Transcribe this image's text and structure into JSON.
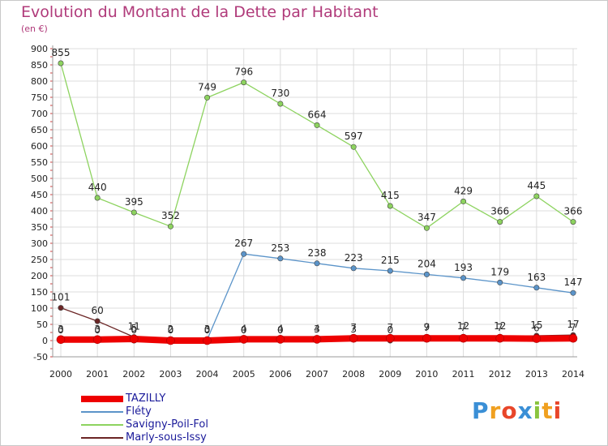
{
  "title": "Evolution du Montant de la Dette par Habitant",
  "subtitle": "(en €)",
  "logo": "Proxiti",
  "chart_data": {
    "type": "line",
    "title": "Evolution du Montant de la Dette par Habitant",
    "ylabel": "(en €)",
    "xlabel": "",
    "x": [
      "2000",
      "2001",
      "2002",
      "2003",
      "2004",
      "2005",
      "2006",
      "2007",
      "2008",
      "2009",
      "2010",
      "2011",
      "2012",
      "2013",
      "2014"
    ],
    "ylim": [
      -50,
      900
    ],
    "yticks": [
      -50,
      0,
      50,
      100,
      150,
      200,
      250,
      300,
      350,
      400,
      450,
      500,
      550,
      600,
      650,
      700,
      750,
      800,
      850,
      900
    ],
    "grid": true,
    "legend_position": "bottom-left",
    "series": [
      {
        "name": "TAZILLY",
        "color": "#ee0000",
        "values": [
          3,
          3,
          5,
          0,
          0,
          4,
          4,
          4,
          7,
          7,
          7,
          7,
          7,
          6,
          7
        ]
      },
      {
        "name": "Fléty",
        "color": "#5b94c9",
        "values": [
          0,
          0,
          0,
          0,
          3,
          267,
          253,
          238,
          223,
          215,
          204,
          193,
          179,
          163,
          147
        ]
      },
      {
        "name": "Savigny-Poil-Fol",
        "color": "#8dd35f",
        "values": [
          855,
          440,
          395,
          352,
          749,
          796,
          730,
          664,
          597,
          415,
          347,
          429,
          366,
          445,
          366
        ]
      },
      {
        "name": "Marly-sous-Issy",
        "color": "#6b2525",
        "values": [
          101,
          60,
          11,
          2,
          0,
          0,
          0,
          3,
          3,
          0,
          9,
          12,
          12,
          15,
          17
        ]
      }
    ]
  }
}
